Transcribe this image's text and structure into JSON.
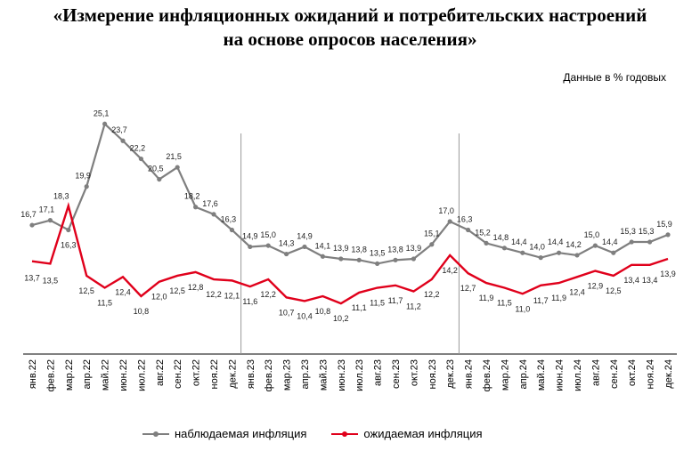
{
  "header": {
    "title_line1": "«Измерение инфляционных ожиданий и потребительских настроений",
    "title_line2": "на основе опросов населения»",
    "unit_note": "Данные в % годовых"
  },
  "chart_data": {
    "type": "line",
    "categories": [
      "янв.22",
      "фев.22",
      "мар.22",
      "апр.22",
      "май.22",
      "июн.22",
      "июл.22",
      "авг.22",
      "сен.22",
      "окт.22",
      "ноя.22",
      "дек.22",
      "янв.23",
      "фев.23",
      "мар.23",
      "апр.23",
      "май.23",
      "июн.23",
      "июл.23",
      "авг.23",
      "сен.23",
      "окт.23",
      "ноя.23",
      "дек.23",
      "янв.24",
      "фев.24",
      "мар.24",
      "апр.24",
      "май.24",
      "июн.24",
      "июл.24",
      "авг.24",
      "сен.24",
      "окт.24",
      "ноя.24",
      "дек.24"
    ],
    "series": [
      {
        "name": "наблюдаемая инфляция",
        "color": "#7f7f7f",
        "values": [
          16.7,
          17.1,
          16.3,
          19.9,
          25.1,
          23.7,
          22.2,
          20.5,
          21.5,
          18.2,
          17.6,
          16.3,
          14.9,
          15.0,
          14.3,
          14.9,
          14.1,
          13.9,
          13.8,
          13.5,
          13.8,
          13.9,
          15.1,
          17.0,
          16.3,
          15.2,
          14.8,
          14.4,
          14.0,
          14.4,
          14.2,
          15.0,
          14.4,
          15.3,
          15.3,
          15.9
        ]
      },
      {
        "name": "ожидаемая инфляция",
        "color": "#e0001b",
        "values": [
          13.7,
          13.5,
          18.3,
          12.5,
          11.5,
          12.4,
          10.8,
          12.0,
          12.5,
          12.8,
          12.2,
          12.1,
          11.6,
          12.2,
          10.7,
          10.4,
          10.8,
          10.2,
          11.1,
          11.5,
          11.7,
          11.2,
          12.2,
          14.2,
          12.7,
          11.9,
          11.5,
          11.0,
          11.7,
          11.9,
          12.4,
          12.9,
          12.5,
          13.4,
          13.4,
          13.9
        ]
      }
    ],
    "ylim": [
      6,
      28
    ],
    "year_separators_after": [
      "дек.22",
      "дек.23"
    ],
    "legend_position": "bottom"
  }
}
